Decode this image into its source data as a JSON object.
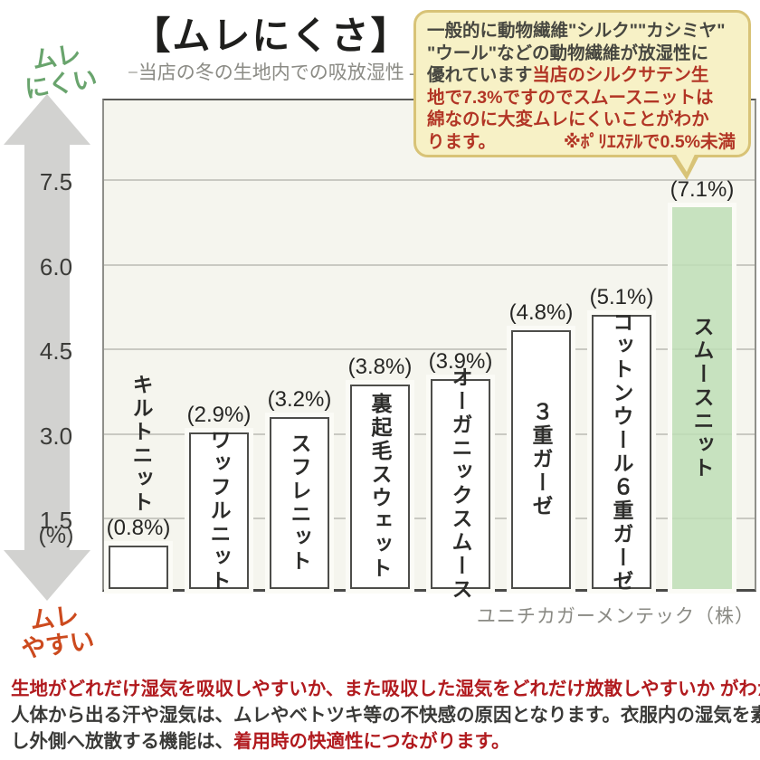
{
  "chart_data": {
    "type": "bar",
    "title": "【ムレにくさ】",
    "subtitle": "−当店の冬の生地内での吸放湿性 -",
    "categories": [
      "キルトニット",
      "ワッフルニット",
      "スフレニット",
      "裏起毛スウェット",
      "オーガニックスムース",
      "３重ガーゼ",
      "コットンウール６重ガーゼ",
      "スムースニット"
    ],
    "values": [
      0.8,
      2.9,
      3.2,
      3.8,
      3.9,
      4.8,
      5.1,
      7.1
    ],
    "value_labels": [
      "(0.8%)",
      "(2.9%)",
      "(3.2%)",
      "(3.8%)",
      "(3.9%)",
      "(4.8%)",
      "(5.1%)",
      "(7.1%)"
    ],
    "highlighted_category": "スムースニット",
    "yticks": [
      "7.5",
      "6.0",
      "4.5",
      "3.0",
      "1.5"
    ],
    "ytick_values": [
      7.5,
      6.0,
      4.5,
      3.0,
      1.5
    ],
    "ylabel": "(%)",
    "ylim": [
      0,
      8.5
    ],
    "grid": "horizontal",
    "axis_arrow_top": "ムレ\nにくい",
    "axis_arrow_bottom": "ムレ\nやすい",
    "source": "ユニチカガーメンテック（株）"
  },
  "bubble": {
    "lines": [
      {
        "segments": [
          {
            "t": "一般的に動物繊維\"シルク\"\"カシミヤ\"",
            "c": "dark"
          }
        ]
      },
      {
        "segments": [
          {
            "t": "\"ウール\"などの動物繊維が放湿性に",
            "c": "dark"
          }
        ]
      },
      {
        "segments": [
          {
            "t": "優れています ",
            "c": "dark"
          },
          {
            "t": "当店のシルクサテン生",
            "c": "red"
          }
        ]
      },
      {
        "segments": [
          {
            "t": "地で7.3%ですのでスムースニットは",
            "c": "red"
          }
        ]
      },
      {
        "segments": [
          {
            "t": "綿なのに大変ムレにくいことがわか",
            "c": "red"
          }
        ]
      },
      {
        "segments": [
          {
            "t": "ります。",
            "c": "red"
          },
          {
            "t": "※ﾎﾟﾘｴｽﾃﾙで0.5%未満",
            "c": "red",
            "push": true
          }
        ]
      }
    ]
  },
  "footer": {
    "lines": [
      {
        "segments": [
          {
            "t": "生地がどれだけ湿気を吸収しやすいか、また吸収した湿気をどれだけ放散しやすいか がわかります",
            "c": "red"
          }
        ]
      },
      {
        "segments": [
          {
            "t": "人体から出る汗や湿気は、ムレやベトツキ等の不快感の原因となります。衣服内の湿気を素早く吸収",
            "c": "dark"
          }
        ]
      },
      {
        "segments": [
          {
            "t": "し外側へ放散する機能は、",
            "c": "dark"
          },
          {
            "t": "着用時の快適性につながります。",
            "c": "red"
          }
        ]
      }
    ]
  },
  "colors": {
    "highlight_bar": "#cde6c8",
    "bar_fill": "#ffffff",
    "bar_border": "#4d4d4a",
    "label_green": "#69a46d",
    "label_orange": "#cc4a1e",
    "bubble_bg": "#f7f1c6",
    "bubble_border": "#d8c377",
    "bubble_red_text": "#b23525",
    "footer_red_text": "#b11a1e",
    "plot_bg": "#f5f5ee"
  }
}
